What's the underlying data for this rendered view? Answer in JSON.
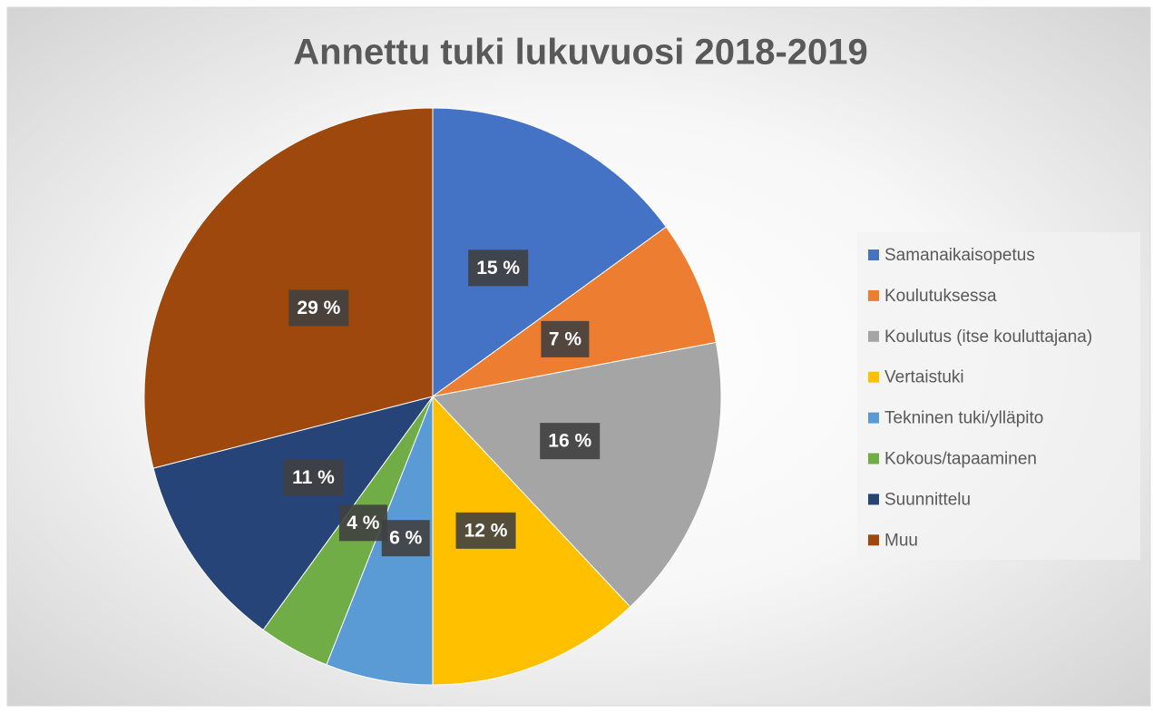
{
  "chart_data": {
    "type": "pie",
    "title": "Annettu tuki lukuvuosi 2018-2019",
    "categories": [
      "Samanaikaisopetus",
      "Koulutuksessa",
      "Koulutus (itse kouluttajana)",
      "Vertaistuki",
      "Tekninen tuki/ylläpito",
      "Kokous/tapaaminen",
      "Suunnittelu",
      "Muu"
    ],
    "values": [
      15,
      7,
      16,
      12,
      6,
      4,
      11,
      29
    ],
    "value_labels": [
      "15 %",
      "7 %",
      "16 %",
      "12 %",
      "6 %",
      "4 %",
      "11 %",
      "29 %"
    ],
    "colors": [
      "#4472c4",
      "#ed7d31",
      "#a5a5a5",
      "#ffc000",
      "#5b9bd5",
      "#70ad47",
      "#264478",
      "#9e480e"
    ],
    "legend": "right"
  }
}
